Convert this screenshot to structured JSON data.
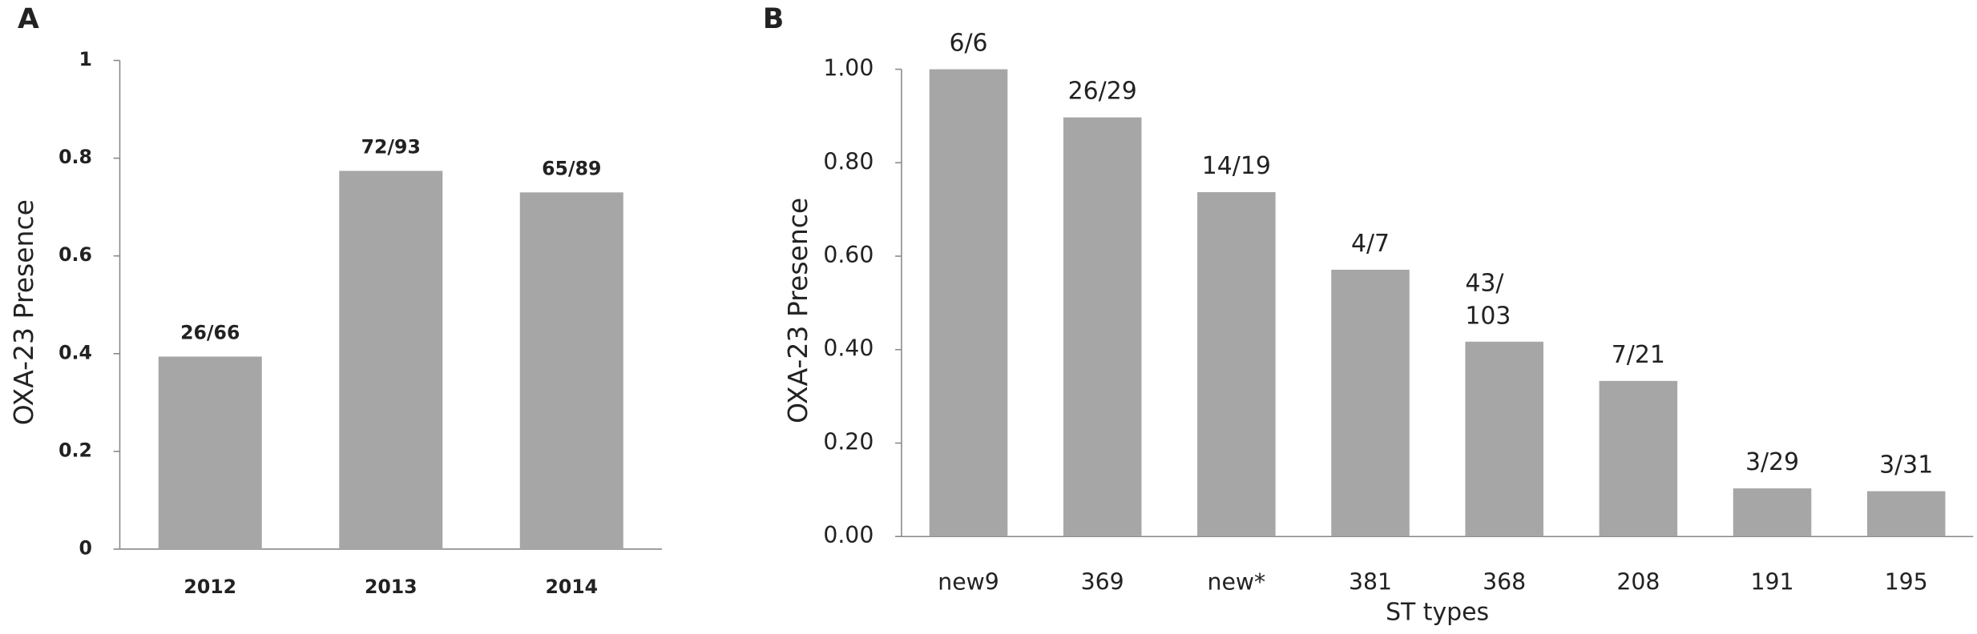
{
  "chart_data": [
    {
      "type": "bar",
      "panel_label": "A",
      "y_label": "OXA-23 Presence",
      "categories": [
        "2012",
        "2013",
        "2014"
      ],
      "values": [
        0.394,
        0.774,
        0.73
      ],
      "value_labels": [
        "26/66",
        "72/93",
        "65/89"
      ],
      "color": "#a6a6a6",
      "ylim": [
        0,
        1
      ],
      "yticks": [
        0,
        0.2,
        0.4,
        0.6,
        0.8,
        1
      ],
      "grid": false
    },
    {
      "type": "bar",
      "panel_label": "B",
      "y_label": "OXA-23 Presence",
      "x_label": "ST types",
      "categories": [
        "new9",
        "369",
        "new*",
        "381",
        "368",
        "208",
        "191",
        "195"
      ],
      "values": [
        1,
        0.897,
        0.737,
        0.571,
        0.417,
        0.333,
        0.103,
        0.097
      ],
      "value_labels": [
        "6/6",
        "26/29",
        "14/19",
        "4/7",
        "43/103",
        "7/21",
        "3/29",
        "3/31"
      ],
      "color": "#a6a6a6",
      "ylim": [
        0,
        1
      ],
      "yticks": [
        {
          "value": 0,
          "label": "0.00"
        },
        {
          "value": 0.2,
          "label": "0.20"
        },
        {
          "value": 0.4,
          "label": "0.40"
        },
        {
          "value": 0.6,
          "label": "0.60"
        },
        {
          "value": 0.8,
          "label": "0.80"
        },
        {
          "value": 1,
          "label": "1.00"
        }
      ],
      "grid": false
    }
  ]
}
